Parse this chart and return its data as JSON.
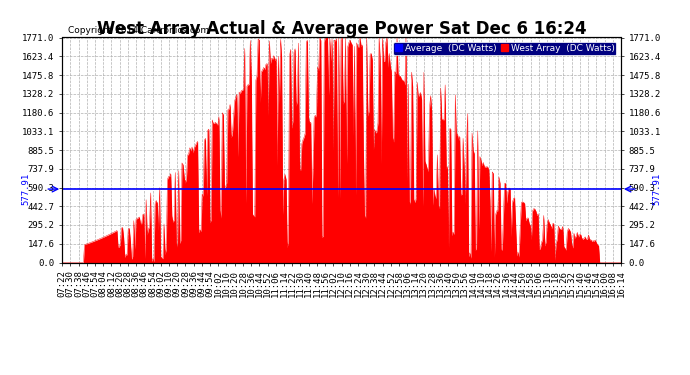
{
  "title": "West Array Actual & Average Power Sat Dec 6 16:24",
  "copyright": "Copyright 2014 Cartronics.com",
  "average_value": 577.91,
  "y_max": 1771.0,
  "y_min": 0.0,
  "yticks": [
    1771.0,
    1623.4,
    1475.8,
    1328.2,
    1180.6,
    1033.1,
    885.5,
    737.9,
    590.3,
    442.7,
    295.2,
    147.6,
    0.0
  ],
  "avg_label": "577.91",
  "legend_avg_label": "Average  (DC Watts)",
  "legend_west_label": "West Array  (DC Watts)",
  "avg_color": "#0000ff",
  "west_color": "#ff0000",
  "west_fill_color": "#ff0000",
  "background_color": "#ffffff",
  "grid_color": "#b0b0b0",
  "title_fontsize": 12,
  "copyright_fontsize": 6.5,
  "tick_fontsize": 6.5,
  "xtick_labels": [
    "07:22",
    "07:30",
    "07:38",
    "07:46",
    "07:54",
    "08:04",
    "08:12",
    "08:20",
    "08:28",
    "08:36",
    "08:46",
    "08:54",
    "09:02",
    "09:10",
    "09:20",
    "09:28",
    "09:36",
    "09:44",
    "09:54",
    "10:02",
    "10:10",
    "10:20",
    "10:28",
    "10:36",
    "10:44",
    "10:52",
    "11:06",
    "11:14",
    "11:22",
    "11:30",
    "11:40",
    "11:48",
    "11:56",
    "12:02",
    "12:10",
    "12:16",
    "12:24",
    "12:30",
    "12:38",
    "12:44",
    "12:52",
    "12:58",
    "13:06",
    "13:14",
    "13:20",
    "13:28",
    "13:36",
    "13:40",
    "13:50",
    "13:56",
    "14:04",
    "14:10",
    "14:18",
    "14:26",
    "14:36",
    "14:44",
    "14:50",
    "14:58",
    "15:06",
    "15:10",
    "15:18",
    "15:26",
    "15:32",
    "15:40",
    "15:46",
    "15:54",
    "16:00",
    "16:08",
    "16:14"
  ],
  "num_points": 500
}
